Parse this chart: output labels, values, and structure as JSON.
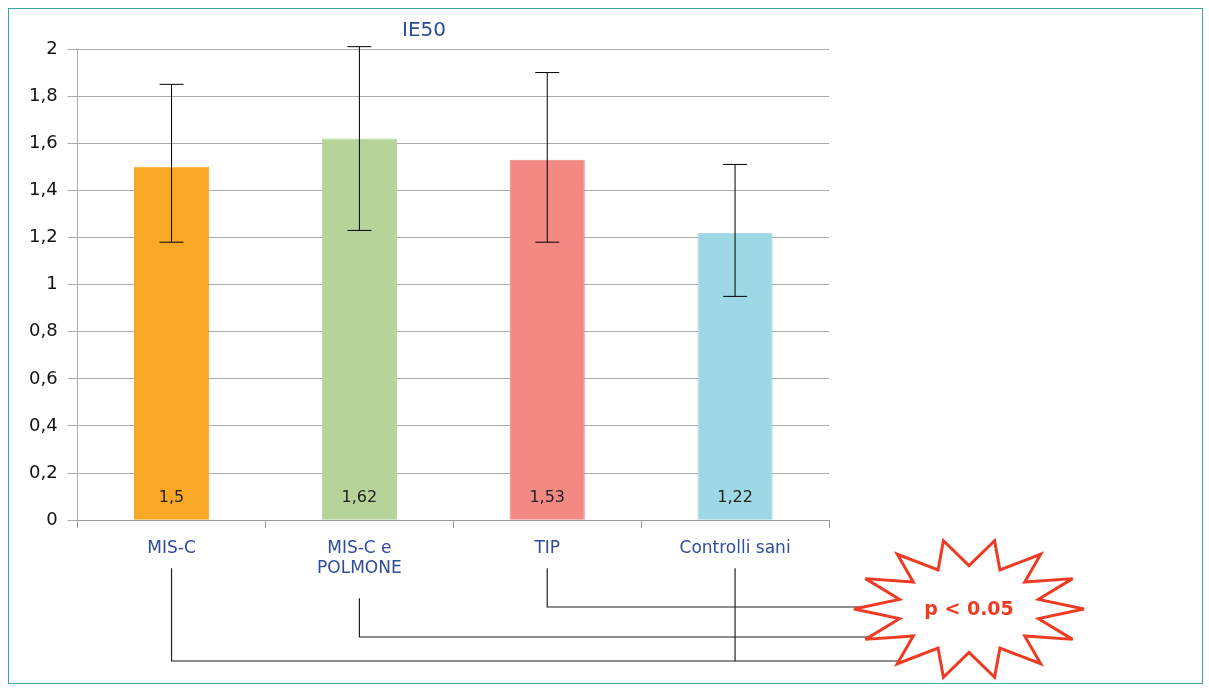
{
  "chart_data": {
    "type": "bar",
    "title": "IE50",
    "categories": [
      "MIS-C",
      "MIS-C e POLMONE",
      "TIP",
      "Controlli sani"
    ],
    "values": [
      1.5,
      1.62,
      1.53,
      1.22
    ],
    "colors": [
      "#f9a825",
      "#b6d39a",
      "#f28984",
      "#9dd8e4"
    ],
    "errors": [
      [
        1.18,
        1.85
      ],
      [
        1.23,
        2.01
      ],
      [
        1.18,
        1.9
      ],
      [
        0.95,
        1.51
      ]
    ],
    "ylim": [
      0,
      2
    ],
    "yticks": [
      {
        "value": 0,
        "label": "0"
      },
      {
        "value": 0.2,
        "label": "0,2"
      },
      {
        "value": 0.4,
        "label": "0,4"
      },
      {
        "value": 0.6,
        "label": "0,6"
      },
      {
        "value": 0.8,
        "label": "0,8"
      },
      {
        "value": 1,
        "label": "1"
      },
      {
        "value": 1.2,
        "label": "1,2"
      },
      {
        "value": 1.4,
        "label": "1,4"
      },
      {
        "value": 1.6,
        "label": "1,6"
      },
      {
        "value": 1.8,
        "label": "1,8"
      },
      {
        "value": 2,
        "label": "2"
      }
    ],
    "data_labels": true,
    "value_labels": [
      "1,5",
      "1,62",
      "1,53",
      "1,22"
    ],
    "grid": "y",
    "legend": false,
    "annotations": [
      "p < 0.05"
    ]
  }
}
